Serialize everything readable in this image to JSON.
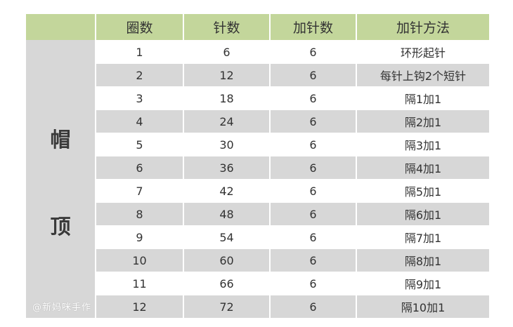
{
  "table": {
    "headers": [
      "圈数",
      "针数",
      "加针数",
      "加针方法"
    ],
    "side_label": [
      "帽",
      "顶"
    ],
    "rows": [
      [
        "1",
        "6",
        "6",
        "环形起针"
      ],
      [
        "2",
        "12",
        "6",
        "每针上钩2个短针"
      ],
      [
        "3",
        "18",
        "6",
        "隔1加1"
      ],
      [
        "4",
        "24",
        "6",
        "隔2加1"
      ],
      [
        "5",
        "30",
        "6",
        "隔3加1"
      ],
      [
        "6",
        "36",
        "6",
        "隔4加1"
      ],
      [
        "7",
        "42",
        "6",
        "隔5加1"
      ],
      [
        "8",
        "48",
        "6",
        "隔6加1"
      ],
      [
        "9",
        "54",
        "6",
        "隔7加1"
      ],
      [
        "10",
        "60",
        "6",
        "隔8加1"
      ],
      [
        "11",
        "66",
        "6",
        "隔9加1"
      ],
      [
        "12",
        "72",
        "6",
        "隔10加1"
      ]
    ]
  },
  "watermark": "@新妈咪手作",
  "colors": {
    "header_bg": "#c3d69b",
    "stripe_bg": "#d7d7d7",
    "text": "#333333"
  }
}
